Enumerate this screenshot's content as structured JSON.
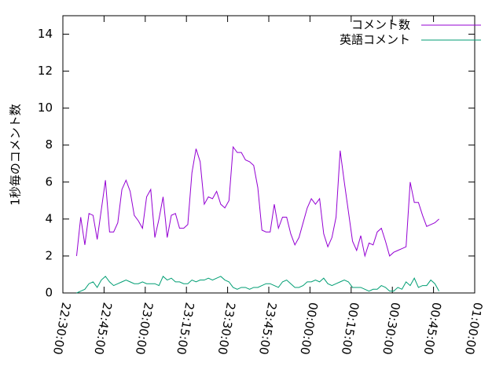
{
  "chart_data": {
    "type": "line",
    "ylabel": "1秒毎のコメント数",
    "x": [
      "22:35:00",
      "22:36:30",
      "22:38:00",
      "22:39:30",
      "22:41:00",
      "22:42:30",
      "22:44:00",
      "22:45:30",
      "22:47:00",
      "22:48:30",
      "22:50:00",
      "22:51:30",
      "22:53:00",
      "22:54:30",
      "22:56:00",
      "22:57:30",
      "22:59:00",
      "23:00:30",
      "23:02:00",
      "23:03:30",
      "23:05:00",
      "23:06:30",
      "23:08:00",
      "23:09:30",
      "23:11:00",
      "23:12:30",
      "23:14:00",
      "23:15:30",
      "23:17:00",
      "23:18:30",
      "23:20:00",
      "23:21:30",
      "23:23:00",
      "23:24:30",
      "23:26:00",
      "23:27:30",
      "23:29:00",
      "23:30:30",
      "23:32:00",
      "23:33:30",
      "23:35:00",
      "23:36:30",
      "23:38:00",
      "23:39:30",
      "23:41:00",
      "23:42:30",
      "23:44:00",
      "23:45:30",
      "23:47:00",
      "23:48:30",
      "23:50:00",
      "23:51:30",
      "23:53:00",
      "23:54:30",
      "23:56:00",
      "23:57:30",
      "23:59:00",
      "00:00:30",
      "00:02:00",
      "00:03:30",
      "00:05:00",
      "00:06:30",
      "00:08:00",
      "00:09:30",
      "00:11:00",
      "00:12:30",
      "00:14:00",
      "00:15:30",
      "00:17:00",
      "00:18:30",
      "00:20:00",
      "00:21:30",
      "00:23:00",
      "00:24:30",
      "00:26:00",
      "00:27:30",
      "00:29:00",
      "00:30:30",
      "00:32:00",
      "00:33:30",
      "00:35:00",
      "00:36:30",
      "00:38:00",
      "00:39:30",
      "00:41:00",
      "00:42:30",
      "00:44:00",
      "00:45:30",
      "00:47:00"
    ],
    "series": [
      {
        "name": "コメント数",
        "color": "#9400d3",
        "values": [
          2.0,
          4.1,
          2.6,
          4.3,
          4.2,
          2.9,
          4.5,
          6.1,
          3.3,
          3.3,
          3.8,
          5.6,
          6.1,
          5.5,
          4.2,
          3.9,
          3.5,
          5.2,
          5.6,
          3.0,
          4.0,
          5.2,
          3.0,
          4.2,
          4.3,
          3.5,
          3.5,
          3.7,
          6.5,
          7.8,
          7.1,
          4.8,
          5.2,
          5.1,
          5.5,
          4.8,
          4.6,
          5.0,
          7.9,
          7.6,
          7.6,
          7.2,
          7.1,
          6.9,
          5.7,
          3.4,
          3.3,
          3.3,
          4.8,
          3.5,
          4.1,
          4.1,
          3.2,
          2.6,
          3.0,
          3.8,
          4.6,
          5.1,
          4.8,
          5.1,
          3.2,
          2.5,
          3.0,
          4.1,
          7.7,
          6.0,
          4.4,
          2.8,
          2.3,
          3.1,
          2.0,
          2.7,
          2.6,
          3.3,
          3.5,
          2.8,
          2.0,
          2.2,
          2.3,
          2.4,
          2.5,
          6.0,
          4.9,
          4.9,
          4.2,
          3.6,
          3.7,
          3.8,
          4.0
        ]
      },
      {
        "name": "英語コメント",
        "color": "#009e73",
        "values": [
          0.0,
          0.1,
          0.2,
          0.5,
          0.6,
          0.3,
          0.7,
          0.9,
          0.6,
          0.4,
          0.5,
          0.6,
          0.7,
          0.6,
          0.5,
          0.5,
          0.6,
          0.5,
          0.5,
          0.5,
          0.4,
          0.9,
          0.7,
          0.8,
          0.6,
          0.6,
          0.5,
          0.5,
          0.7,
          0.6,
          0.7,
          0.7,
          0.8,
          0.7,
          0.8,
          0.9,
          0.7,
          0.6,
          0.3,
          0.2,
          0.3,
          0.3,
          0.2,
          0.3,
          0.3,
          0.4,
          0.5,
          0.5,
          0.4,
          0.3,
          0.6,
          0.7,
          0.5,
          0.3,
          0.3,
          0.4,
          0.6,
          0.6,
          0.7,
          0.6,
          0.8,
          0.5,
          0.4,
          0.5,
          0.6,
          0.7,
          0.6,
          0.3,
          0.3,
          0.3,
          0.2,
          0.1,
          0.2,
          0.2,
          0.4,
          0.3,
          0.1,
          0.1,
          0.3,
          0.2,
          0.6,
          0.4,
          0.8,
          0.3,
          0.4,
          0.4,
          0.7,
          0.5,
          0.1
        ]
      }
    ],
    "xlim": [
      "22:30:00",
      "01:00:00"
    ],
    "xticks": [
      "22:30:00",
      "22:45:00",
      "23:00:00",
      "23:15:00",
      "23:30:00",
      "23:45:00",
      "00:00:00",
      "00:15:00",
      "00:30:00",
      "00:45:00",
      "01:00:00"
    ],
    "ylim": [
      0,
      15
    ],
    "yticks": [
      0,
      2,
      4,
      6,
      8,
      10,
      12,
      14
    ],
    "grid": false,
    "legend": "top-right"
  }
}
